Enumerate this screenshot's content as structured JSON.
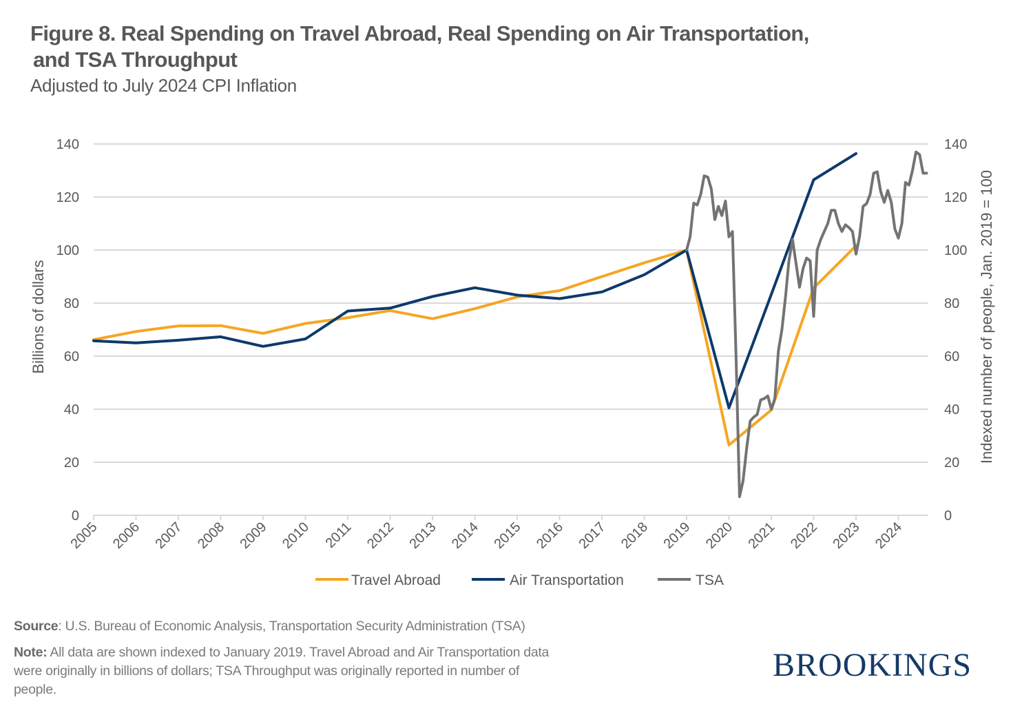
{
  "header": {
    "title_line1": "Figure 8. Real Spending on Travel Abroad, Real Spending on Air Transportation,",
    "title_line2": "and TSA Throughput",
    "subtitle": "Adjusted to July 2024 CPI Inflation"
  },
  "footer": {
    "source_label": "Source",
    "source_text": ": U.S. Bureau of Economic Analysis, Transportation Security Administration (TSA)",
    "note_label": "Note:",
    "note_text": " All data are shown indexed to January 2019. Travel Abroad and Air Transportation data were originally in billions of dollars; TSA Throughput was originally reported in number of people.",
    "logo": "BROOKINGS"
  },
  "chart_data": {
    "type": "line",
    "title": "Figure 8. Real Spending on Travel Abroad, Real Spending on Air Transportation, and TSA Throughput",
    "subtitle": "Adjusted to July 2024 CPI Inflation",
    "xlabel": "",
    "ylabel": "Billions of dollars",
    "ylabel_right": "Indexed number of people, Jan. 2019 = 100",
    "xlim": [
      2005,
      2024.75
    ],
    "ylim": [
      0,
      140
    ],
    "ylim_right": [
      0,
      140
    ],
    "yticks": [
      0,
      20,
      40,
      60,
      80,
      100,
      120,
      140
    ],
    "xticks": [
      "2005",
      "2006",
      "2007",
      "2008",
      "2009",
      "2010",
      "2011",
      "2012",
      "2013",
      "2014",
      "2015",
      "2016",
      "2017",
      "2018",
      "2019",
      "2020",
      "2021",
      "2022",
      "2023",
      "2024"
    ],
    "grid": true,
    "legend_position": "bottom",
    "colors": {
      "travel": "#f5a623",
      "air": "#0d3a6b",
      "tsa": "#737373",
      "grid": "#d9d9d9",
      "text": "#58585a"
    },
    "series": [
      {
        "name": "Travel Abroad",
        "key": "travel",
        "axis": "left",
        "x": [
          2005,
          2006,
          2007,
          2008,
          2009,
          2010,
          2011,
          2012,
          2013,
          2014,
          2015,
          2016,
          2017,
          2018,
          2019,
          2020,
          2021,
          2022,
          2023
        ],
        "values": [
          66.2,
          69.3,
          71.4,
          71.5,
          68.6,
          72.3,
          74.5,
          77.2,
          74.1,
          77.9,
          82.3,
          84.7,
          90.0,
          95.2,
          100.0,
          26.5,
          39.7,
          85.7,
          101.6
        ]
      },
      {
        "name": "Air Transportation",
        "key": "air",
        "axis": "left",
        "x": [
          2005,
          2006,
          2007,
          2008,
          2009,
          2010,
          2011,
          2012,
          2013,
          2014,
          2015,
          2016,
          2017,
          2018,
          2019,
          2020,
          2021,
          2022,
          2023
        ],
        "values": [
          65.8,
          65.0,
          66.0,
          67.3,
          63.7,
          66.5,
          77.0,
          78.1,
          82.5,
          85.8,
          83.0,
          81.7,
          84.2,
          90.7,
          100.0,
          40.5,
          83.3,
          126.5,
          136.4
        ]
      },
      {
        "name": "TSA",
        "key": "tsa",
        "axis": "right",
        "x": [
          2019.0,
          2019.083,
          2019.167,
          2019.25,
          2019.333,
          2019.417,
          2019.5,
          2019.583,
          2019.667,
          2019.75,
          2019.833,
          2019.917,
          2020.0,
          2020.083,
          2020.167,
          2020.25,
          2020.333,
          2020.417,
          2020.5,
          2020.583,
          2020.667,
          2020.75,
          2020.833,
          2020.917,
          2021.0,
          2021.083,
          2021.167,
          2021.25,
          2021.333,
          2021.417,
          2021.5,
          2021.583,
          2021.667,
          2021.75,
          2021.833,
          2021.917,
          2022.0,
          2022.083,
          2022.167,
          2022.25,
          2022.333,
          2022.417,
          2022.5,
          2022.583,
          2022.667,
          2022.75,
          2022.833,
          2022.917,
          2023.0,
          2023.083,
          2023.167,
          2023.25,
          2023.333,
          2023.417,
          2023.5,
          2023.583,
          2023.667,
          2023.75,
          2023.833,
          2023.917,
          2024.0,
          2024.083,
          2024.167,
          2024.25,
          2024.333,
          2024.417,
          2024.5,
          2024.583,
          2024.667
        ],
        "values": [
          100.0,
          105.0,
          117.7,
          117.0,
          121.0,
          128.0,
          127.5,
          123.0,
          111.5,
          116.5,
          113.0,
          118.5,
          105.0,
          107.0,
          60.0,
          7.0,
          13.0,
          25.0,
          35.5,
          37.0,
          38.0,
          43.5,
          44.0,
          45.0,
          40.0,
          44.0,
          62.0,
          70.0,
          82.0,
          96.0,
          104.0,
          95.0,
          86.0,
          93.0,
          97.0,
          96.0,
          75.0,
          100.0,
          104.0,
          107.0,
          110.0,
          115.0,
          115.0,
          110.0,
          107.0,
          109.5,
          108.5,
          107.0,
          98.5,
          105.0,
          116.5,
          117.5,
          121.0,
          129.0,
          129.5,
          122.0,
          118.0,
          122.5,
          118.0,
          108.0,
          104.5,
          110.0,
          125.5,
          124.5,
          130.0,
          137.0,
          136.0,
          129.0,
          129.0
        ]
      }
    ]
  }
}
